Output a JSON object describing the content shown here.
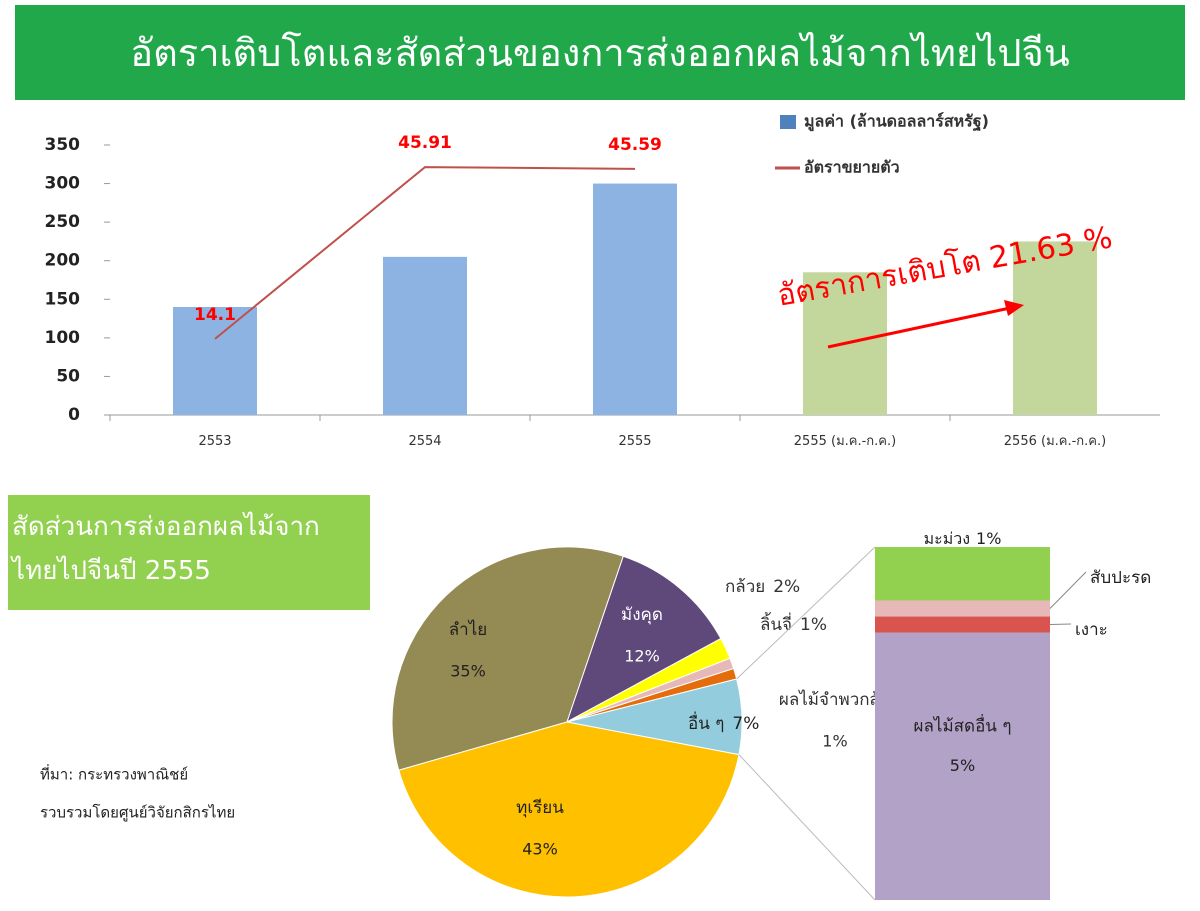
{
  "header": {
    "title": "อัตราเติบโตและสัดส่วนของการส่งออกผลไม้จากไทยไปจีน"
  },
  "source": [
    "ที่มา: กระทรวงพาณิชย์",
    "รวบรวมโดยศูนย์วิจัยกสิกรไทย"
  ],
  "chart_data": [
    {
      "type": "bar",
      "categories": [
        "2553",
        "2554",
        "2555",
        "2555 (ม.ค.-ก.ค.)",
        "2556 (ม.ค.-ก.ค.)"
      ],
      "series": [
        {
          "name": "มูลค่า (ล้านดอลลาร์สหรัฐ)",
          "color": "#4f81bd",
          "colors": [
            "#8db3e2",
            "#8db3e2",
            "#8db3e2",
            "#c3d69b",
            "#c3d69b"
          ],
          "values": [
            140,
            205,
            300,
            185,
            225
          ]
        },
        {
          "name": "อัตราขยายตัว",
          "type": "line",
          "axis": "y2",
          "color": "#c0504d",
          "label_color": "#ff0000",
          "values": [
            14.1,
            45.91,
            45.59,
            null,
            null
          ]
        }
      ],
      "ylim": [
        0,
        350
      ],
      "yticks": [
        0,
        50,
        100,
        150,
        200,
        250,
        300,
        350
      ],
      "y2lim": [
        0,
        50
      ],
      "grid": false,
      "legend": "top-right",
      "annotation": "อัตราการเติบโต 21.63 %",
      "annotation_color": "#ff0000"
    },
    {
      "type": "pie",
      "title": "สัดส่วนการส่งออกผลไม้จากไทยไปจีนปี 2555",
      "title_color": "#92d050",
      "categories": [
        "ลำไย",
        "มังคุด",
        "กล้วย",
        "ลิ้นจี่",
        "ผลไม้จำพวกส้ม",
        "อื่น ๆ",
        "ทุเรียน"
      ],
      "values": [
        35,
        12,
        2,
        1,
        1,
        7,
        43
      ],
      "value_labels": [
        "35%",
        "12%",
        "2%",
        "1%",
        "1%",
        "7%",
        "43%"
      ],
      "colors": [
        "#948a54",
        "#5f497a",
        "#ffff00",
        "#e6b9b8",
        "#e46c0a",
        "#93cddd",
        "#ffc000"
      ]
    },
    {
      "type": "stacked-bar",
      "series": [
        {
          "name": "ผลไม้สดอื่น ๆ",
          "color": "#b3a2c7",
          "values": [
            5
          ],
          "value_labels": [
            "5%"
          ]
        },
        {
          "name": "เงาะ",
          "color": "#d9534f",
          "values": [
            0.3
          ]
        },
        {
          "name": "สับปะรด",
          "color": "#e6b9b8",
          "values": [
            0.3
          ]
        },
        {
          "name": "มะม่วง",
          "color": "#92d050",
          "values": [
            1
          ],
          "value_labels": [
            "1%"
          ]
        }
      ]
    }
  ]
}
